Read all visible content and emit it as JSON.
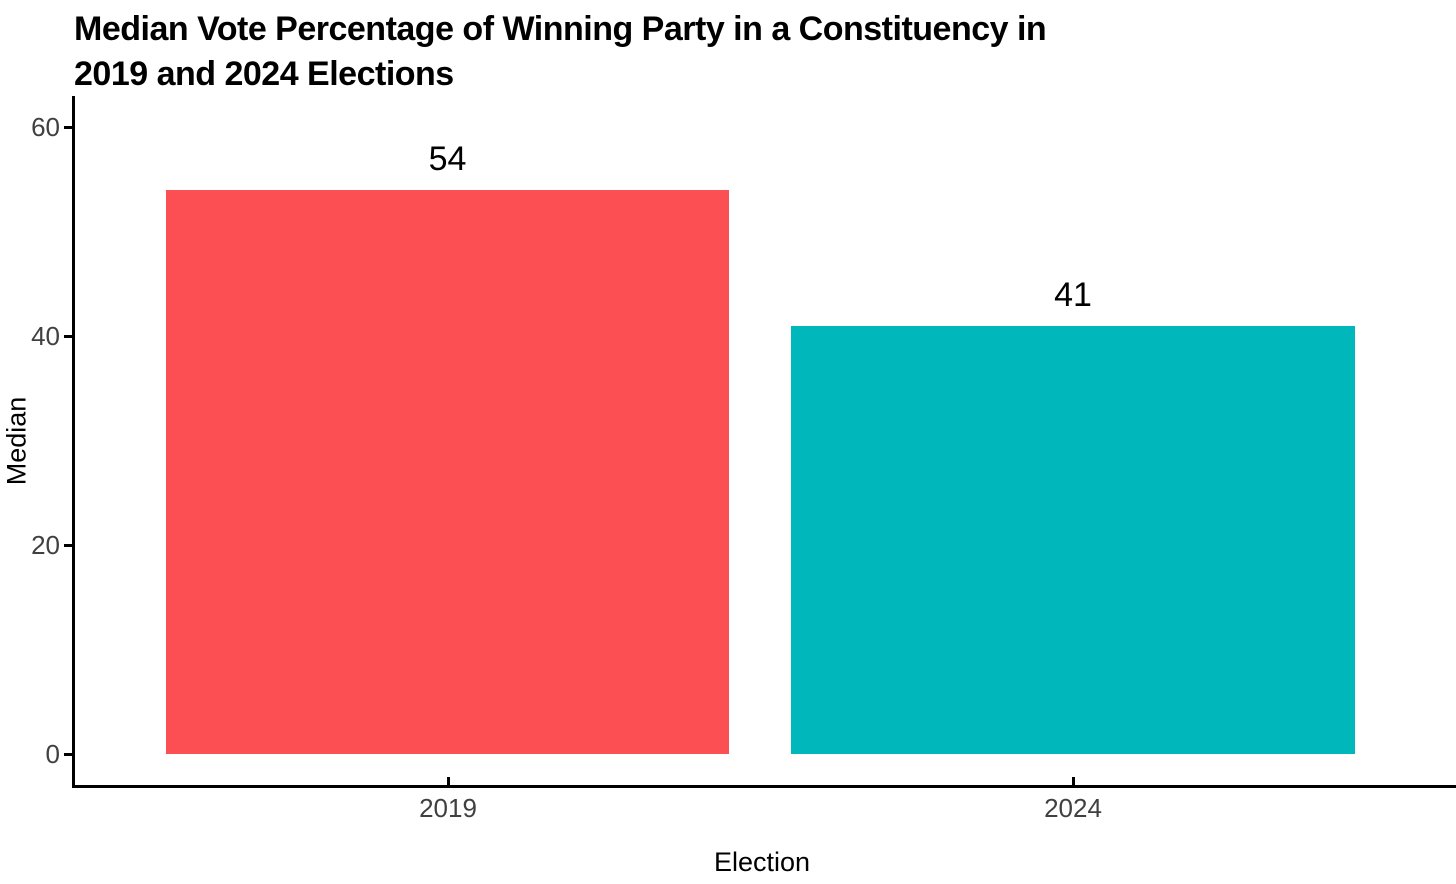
{
  "title": {
    "line1": "Median Vote Percentage of Winning Party in a Constituency in",
    "line2": "2019 and 2024 Elections"
  },
  "chart_data": {
    "type": "bar",
    "title": "Median Vote Percentage of Winning Party in a Constituency in 2019 and 2024 Elections",
    "categories": [
      "2019",
      "2024"
    ],
    "values": [
      54,
      41
    ],
    "bar_labels": [
      "54",
      "41"
    ],
    "bar_colors": [
      "#FC4F54",
      "#00B7BC"
    ],
    "xlabel": "Election",
    "ylabel": "Median",
    "yticks": [
      0,
      20,
      40,
      60
    ],
    "ylim": [
      0,
      63
    ],
    "grid": false,
    "legend_position": "none",
    "background": "#FFFFFF",
    "axis_color": "#000000",
    "tick_text_color": "#404040"
  }
}
